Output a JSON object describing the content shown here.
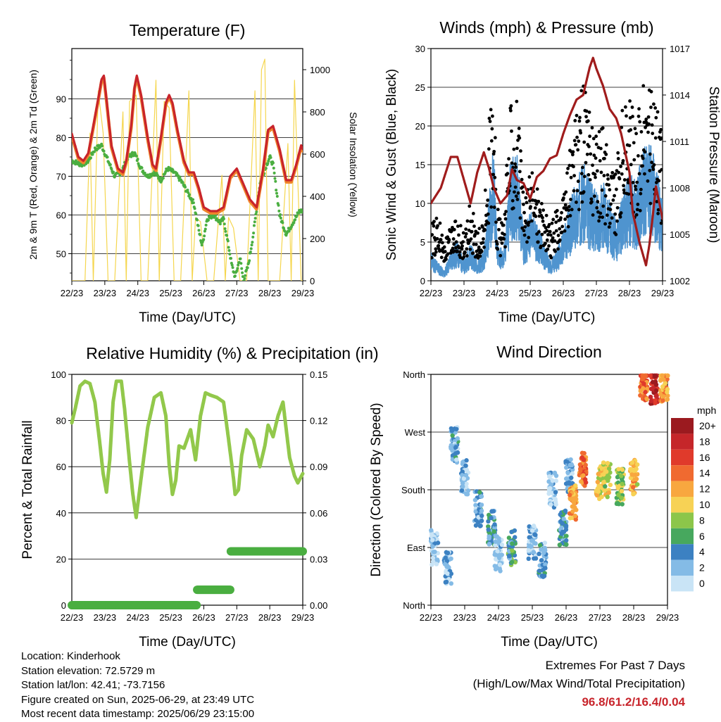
{
  "chart_data": [
    {
      "type": "line",
      "title": "Temperature (F)",
      "xlabel": "Time (Day/UTC)",
      "ylabel": "2m & 9m T (Red, Orange) & 2m Td (Green)",
      "y2label": "Solar Insolation (Yellow)",
      "x_ticks": [
        "22/23",
        "23/23",
        "24/23",
        "25/23",
        "26/23",
        "27/23",
        "28/23",
        "29/23"
      ],
      "ylim": [
        43,
        103
      ],
      "y_ticks": [
        50,
        60,
        70,
        80,
        90
      ],
      "y2lim": [
        0,
        1100
      ],
      "y2_ticks": [
        0,
        200,
        400,
        600,
        800,
        1000
      ],
      "grid": "horizontal",
      "series": [
        {
          "name": "2m T",
          "color": "#c8242b",
          "x_days": [
            0,
            0.1,
            0.2,
            0.35,
            0.5,
            0.65,
            0.8,
            0.9,
            0.97,
            1.05,
            1.2,
            1.4,
            1.55,
            1.65,
            1.8,
            1.9,
            1.97,
            2.1,
            2.3,
            2.45,
            2.55,
            2.7,
            2.85,
            2.95,
            3.05,
            3.2,
            3.4,
            3.55,
            3.7,
            3.85,
            4.0,
            4.2,
            4.4,
            4.6,
            4.8,
            5.0,
            5.2,
            5.4,
            5.6,
            5.8,
            5.95,
            6.1,
            6.3,
            6.5,
            6.65,
            6.8,
            6.95,
            7.0
          ],
          "values": [
            81,
            78,
            75,
            74,
            76,
            83,
            90,
            95,
            96,
            90,
            78,
            72,
            71,
            74,
            83,
            93,
            96,
            91,
            80,
            73,
            72,
            80,
            89,
            91,
            89,
            82,
            74,
            71,
            71,
            67,
            62,
            61,
            61,
            62,
            70,
            72,
            68,
            64,
            62,
            72,
            82,
            83,
            77,
            69,
            69,
            73,
            78,
            77
          ]
        },
        {
          "name": "Td",
          "color": "#4aae40",
          "x_days": [
            0,
            0.3,
            0.5,
            0.7,
            0.9,
            1.1,
            1.3,
            1.5,
            1.7,
            1.9,
            2.1,
            2.3,
            2.5,
            2.7,
            2.9,
            3.1,
            3.3,
            3.5,
            3.7,
            3.85,
            3.95,
            4.1,
            4.3,
            4.5,
            4.6,
            4.75,
            4.85,
            4.95,
            5.1,
            5.2,
            5.35,
            5.5,
            5.7,
            5.9,
            6.0,
            6.1,
            6.3,
            6.5,
            6.7,
            6.9,
            7.0
          ],
          "values": [
            74,
            73,
            74,
            77,
            78,
            74,
            70,
            71,
            75,
            76,
            72,
            70,
            71,
            69,
            72,
            71,
            69,
            66,
            63,
            56,
            52,
            59,
            60,
            58,
            59,
            52,
            47,
            44,
            49,
            43,
            47,
            55,
            68,
            73,
            75,
            73,
            60,
            55,
            58,
            61,
            61
          ]
        },
        {
          "name": "Solar Insolation",
          "axis": "y2",
          "color": "#f5d64e",
          "x_days": [
            0,
            0.2,
            0.4,
            0.55,
            0.65,
            0.8,
            0.95,
            1.1,
            1.3,
            1.55,
            1.65,
            1.75,
            1.95,
            2.1,
            2.3,
            2.55,
            2.65,
            2.8,
            2.95,
            3.1,
            3.3,
            3.55,
            3.65,
            3.75,
            3.9,
            4.1,
            4.3,
            4.55,
            4.65,
            4.75,
            4.9,
            5.1,
            5.3,
            5.55,
            5.65,
            5.75,
            5.85,
            5.95,
            6.1,
            6.3,
            6.55,
            6.65,
            6.75,
            6.95,
            7.0
          ],
          "values": [
            0,
            0,
            0,
            700,
            0,
            900,
            700,
            0,
            0,
            800,
            0,
            850,
            880,
            0,
            0,
            950,
            0,
            850,
            820,
            0,
            0,
            900,
            0,
            300,
            280,
            0,
            0,
            500,
            0,
            300,
            250,
            0,
            0,
            900,
            0,
            1000,
            1050,
            0,
            0,
            0,
            650,
            0,
            950,
            0,
            0
          ]
        }
      ]
    },
    {
      "type": "scatter",
      "title": "Winds (mph) & Pressure (mb)",
      "xlabel": "Time (Day/UTC)",
      "ylabel": "Sonic Wind & Gust (Blue, Black)",
      "y2label": "Station Pressure (Maroon)",
      "x_ticks": [
        "22/23",
        "23/23",
        "24/23",
        "25/23",
        "26/23",
        "27/23",
        "28/23",
        "29/23"
      ],
      "ylim": [
        0,
        30
      ],
      "y_ticks": [
        0,
        5,
        10,
        15,
        20,
        25,
        30
      ],
      "y2lim": [
        1002,
        1017
      ],
      "y2_ticks": [
        1002,
        1005,
        1008,
        1011,
        1014,
        1017
      ],
      "grid": "horizontal",
      "series": [
        {
          "name": "Gust",
          "color": "#000000",
          "x_days": [
            0,
            0.2,
            0.4,
            0.6,
            0.8,
            1.0,
            1.2,
            1.4,
            1.6,
            1.8,
            1.9,
            2.0,
            2.2,
            2.4,
            2.6,
            2.8,
            3.0,
            3.2,
            3.4,
            3.6,
            3.8,
            4.0,
            4.2,
            4.4,
            4.6,
            4.8,
            5.0,
            5.2,
            5.4,
            5.6,
            5.8,
            6.0,
            6.2,
            6.4,
            6.6,
            6.8,
            7.0
          ],
          "values": [
            6,
            8,
            4,
            6,
            7,
            5,
            9,
            5,
            7,
            20,
            22,
            8,
            6,
            20,
            21,
            9,
            12,
            11,
            8,
            6,
            8,
            9,
            15,
            18,
            22,
            18,
            16,
            17,
            14,
            12,
            19,
            20,
            17,
            21,
            22,
            20,
            15
          ]
        },
        {
          "name": "Wind",
          "color": "#4f94cf",
          "x_days": [
            0,
            0.2,
            0.4,
            0.6,
            0.8,
            1.0,
            1.2,
            1.4,
            1.6,
            1.8,
            1.9,
            2.0,
            2.2,
            2.4,
            2.6,
            2.8,
            3.0,
            3.2,
            3.4,
            3.6,
            3.8,
            4.0,
            4.2,
            4.4,
            4.6,
            4.8,
            5.0,
            5.2,
            5.4,
            5.6,
            5.8,
            6.0,
            6.2,
            6.4,
            6.6,
            6.8,
            7.0
          ],
          "values": [
            3,
            2,
            1,
            3,
            4,
            2,
            4,
            2,
            3,
            10,
            14,
            4,
            3,
            12,
            13,
            5,
            7,
            6,
            4,
            2,
            3,
            5,
            8,
            10,
            12,
            10,
            9,
            10,
            8,
            6,
            9,
            11,
            10,
            13,
            14,
            12,
            8
          ]
        },
        {
          "name": "Pressure",
          "axis": "y2",
          "color": "#a01c1c",
          "x_days": [
            0,
            0.3,
            0.6,
            0.8,
            1.0,
            1.2,
            1.4,
            1.6,
            1.75,
            1.9,
            2.1,
            2.3,
            2.45,
            2.6,
            2.8,
            3.0,
            3.2,
            3.4,
            3.6,
            3.8,
            4.0,
            4.2,
            4.4,
            4.6,
            4.8,
            4.9,
            5.0,
            5.2,
            5.4,
            5.6,
            5.75,
            5.85,
            6.0,
            6.1,
            6.3,
            6.5,
            6.6,
            6.7,
            6.8,
            7.0
          ],
          "values": [
            1007,
            1008,
            1010,
            1010,
            1008.5,
            1007,
            1009,
            1010.3,
            1009.3,
            1008,
            1007,
            1007.5,
            1009.2,
            1008.5,
            1008.3,
            1007.3,
            1008.7,
            1009.1,
            1009.9,
            1010.1,
            1011.5,
            1012.7,
            1013.7,
            1014,
            1015.8,
            1016.4,
            1015.7,
            1014.6,
            1013.1,
            1012.5,
            1011.5,
            1010.5,
            1009,
            1006.4,
            1004.5,
            1003,
            1004.3,
            1006.1,
            1008.1,
            1006
          ]
        }
      ]
    },
    {
      "type": "line",
      "title": "Relative Humidity (%) & Precipitation (in)",
      "xlabel": "Time (Day/UTC)",
      "ylabel": "Percent & Total Rainfall",
      "x_ticks": [
        "22/23",
        "23/23",
        "24/23",
        "25/23",
        "26/23",
        "27/23",
        "28/23",
        "29/23"
      ],
      "ylim": [
        0,
        100
      ],
      "y_ticks": [
        0,
        20,
        40,
        60,
        80,
        100
      ],
      "y2lim": [
        0,
        0.15
      ],
      "y2_ticks": [
        "0.00",
        "0.03",
        "0.06",
        "0.09",
        "0.12",
        "0.15"
      ],
      "grid": "horizontal",
      "series": [
        {
          "name": "Relative Humidity",
          "color": "#92c84b",
          "x_days": [
            0,
            0.1,
            0.25,
            0.4,
            0.55,
            0.7,
            0.85,
            0.95,
            1.05,
            1.15,
            1.25,
            1.35,
            1.5,
            1.6,
            1.75,
            1.85,
            1.95,
            2.1,
            2.3,
            2.5,
            2.7,
            2.85,
            2.95,
            3.05,
            3.15,
            3.25,
            3.4,
            3.5,
            3.6,
            3.75,
            3.9,
            4.05,
            4.2,
            4.4,
            4.6,
            4.75,
            4.9,
            4.95,
            5.05,
            5.15,
            5.3,
            5.5,
            5.7,
            5.85,
            5.95,
            6.1,
            6.25,
            6.4,
            6.6,
            6.75,
            6.85,
            7.0
          ],
          "values": [
            79,
            85,
            95,
            97,
            96,
            88,
            70,
            57,
            49,
            63,
            88,
            97,
            97,
            85,
            62,
            48,
            38,
            55,
            77,
            90,
            92,
            82,
            61,
            48,
            54,
            69,
            68,
            72,
            76,
            63,
            82,
            92,
            91,
            90,
            88,
            72,
            55,
            48,
            50,
            65,
            76,
            72,
            60,
            69,
            78,
            73,
            82,
            88,
            64,
            56,
            53,
            57
          ]
        },
        {
          "name": "Precipitation",
          "axis": "y2",
          "color": "#4aae40",
          "x_days": [
            0,
            1,
            2,
            3,
            3.8,
            3.8,
            4.8,
            4.8,
            7.0
          ],
          "values": [
            0,
            0,
            0,
            0,
            0,
            0.01,
            0.01,
            0.035,
            0.035
          ]
        }
      ]
    },
    {
      "type": "scatter",
      "title": "Wind Direction",
      "xlabel": "Time (Day/UTC)",
      "ylabel": "Direction (Colored By Speed)",
      "x_ticks": [
        "22/23",
        "23/23",
        "24/23",
        "25/23",
        "26/23",
        "27/23",
        "28/23",
        "29/23"
      ],
      "y_ticks": [
        "North",
        "East",
        "South",
        "West",
        "North"
      ],
      "ylim": [
        0,
        360
      ],
      "grid": "horizontal",
      "colorbar": {
        "title": "mph",
        "labels": [
          "20+",
          "18",
          "16",
          "14",
          "12",
          "10",
          "8",
          "6",
          "4",
          "2",
          "0"
        ],
        "colors": [
          "#9b1a1f",
          "#c5262a",
          "#e03a2b",
          "#f06a30",
          "#f8a73f",
          "#f7d255",
          "#8cc64a",
          "#47a85e",
          "#3c81c2",
          "#84bbe6",
          "#c9e4f6"
        ]
      },
      "clusters": [
        {
          "x_days": [
            0.1,
            0.5,
            0.7,
            1.0,
            1.4,
            1.8,
            2.0,
            2.4,
            3.0,
            3.3,
            3.6,
            3.9,
            4.1,
            4.2,
            4.5,
            5.0,
            5.2,
            5.6,
            6.0,
            6.3,
            6.6,
            6.9
          ],
          "directions": [
            90,
            60,
            250,
            200,
            150,
            120,
            80,
            90,
            100,
            70,
            180,
            120,
            200,
            160,
            210,
            190,
            195,
            185,
            200,
            345,
            340,
            345
          ],
          "speeds": [
            1,
            2,
            3,
            2,
            3,
            4,
            1,
            5,
            2,
            3,
            1,
            4,
            3,
            12,
            14,
            10,
            9,
            8,
            11,
            14,
            18,
            12
          ]
        }
      ]
    }
  ],
  "info": {
    "location": "Location: Kinderhook",
    "elevation": "Station elevation: 72.5729 m",
    "latlon": "Station lat/lon: 42.41; -73.7156",
    "created": "Figure created on Sun, 2025-06-29, at 23:49 UTC",
    "recent": "Most recent data timestamp: 2025/06/29 23:15:00"
  },
  "extremes": {
    "line1": "Extremes For Past 7 Days",
    "line2": "(High/Low/Max Wind/Total Precipitation)",
    "values": "96.8/61.2/16.4/0.04"
  }
}
